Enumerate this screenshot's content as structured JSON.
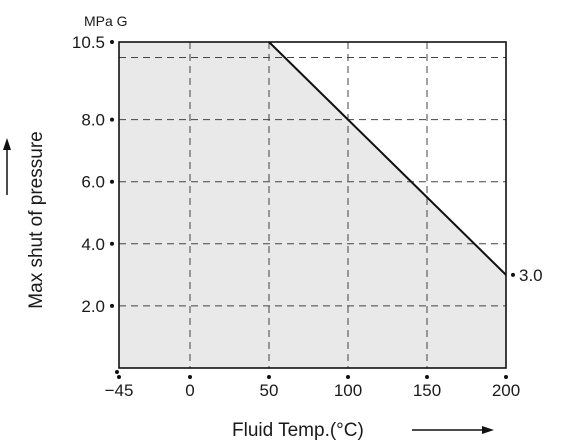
{
  "chart_data": {
    "type": "area",
    "ylabel_unit": "MPa G",
    "ylabel": "Max shut of pressure",
    "xlabel": "Fluid Temp.(°C)",
    "xlim": [
      -45,
      200
    ],
    "ylim": [
      0,
      10.5
    ],
    "x_ticks": [
      -45,
      0,
      50,
      100,
      150,
      200
    ],
    "x_tick_labels": [
      "−45",
      "0",
      "50",
      "100",
      "150",
      "200"
    ],
    "y_ticks": [
      2.0,
      4.0,
      6.0,
      8.0,
      10.5
    ],
    "y_tick_labels": [
      "2.0",
      "4.0",
      "6.0",
      "8.0",
      "10.5"
    ],
    "y_gridlines": [
      2.0,
      4.0,
      6.0,
      8.0,
      10.0
    ],
    "series": [
      {
        "x": [
          -45,
          50,
          100,
          200
        ],
        "y": [
          10.5,
          10.5,
          8.0,
          3.0
        ]
      }
    ],
    "annotations": [
      {
        "x": 200,
        "y": 3.0,
        "text": "3.0"
      }
    ],
    "grid": true,
    "colors": {
      "fill": "#e9e9e9",
      "line": "#111111"
    }
  }
}
